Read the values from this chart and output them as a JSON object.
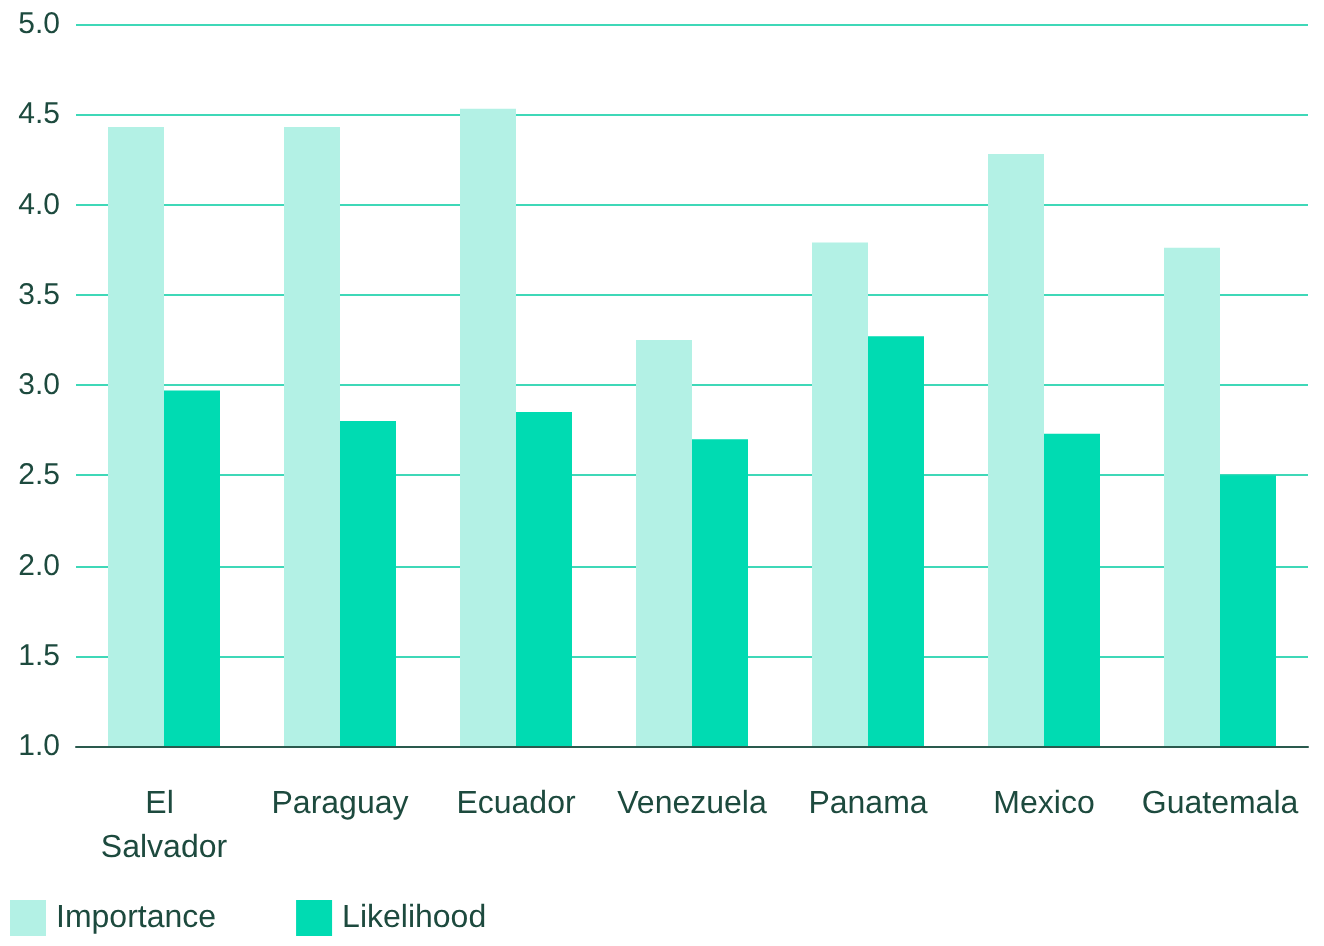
{
  "chart_data": {
    "type": "bar",
    "categories": [
      "El Salvador",
      "Paraguay",
      "Ecuador",
      "Venezuela",
      "Panama",
      "Mexico",
      "Guatemala"
    ],
    "series": [
      {
        "name": "Importance",
        "color": "#b3f1e5",
        "values": [
          4.43,
          4.43,
          4.53,
          3.25,
          3.79,
          4.28,
          3.76
        ]
      },
      {
        "name": "Likelihood",
        "color": "#00dbb2",
        "values": [
          2.97,
          2.8,
          2.85,
          2.7,
          3.27,
          2.73,
          2.5
        ]
      }
    ],
    "ylim": [
      1.0,
      5.0
    ],
    "yticks": [
      {
        "value": 1,
        "label": "1.0"
      },
      {
        "value": 1.5,
        "label": "1.5"
      },
      {
        "value": 2,
        "label": "2.0"
      },
      {
        "value": 2.5,
        "label": "2.5"
      },
      {
        "value": 3,
        "label": "3.0"
      },
      {
        "value": 3.5,
        "label": "3.5"
      },
      {
        "value": 4,
        "label": "4.0"
      },
      {
        "value": 4.5,
        "label": "4.5"
      },
      {
        "value": 5,
        "label": "5.0"
      }
    ],
    "grid": "y",
    "legend": "bottom left"
  }
}
